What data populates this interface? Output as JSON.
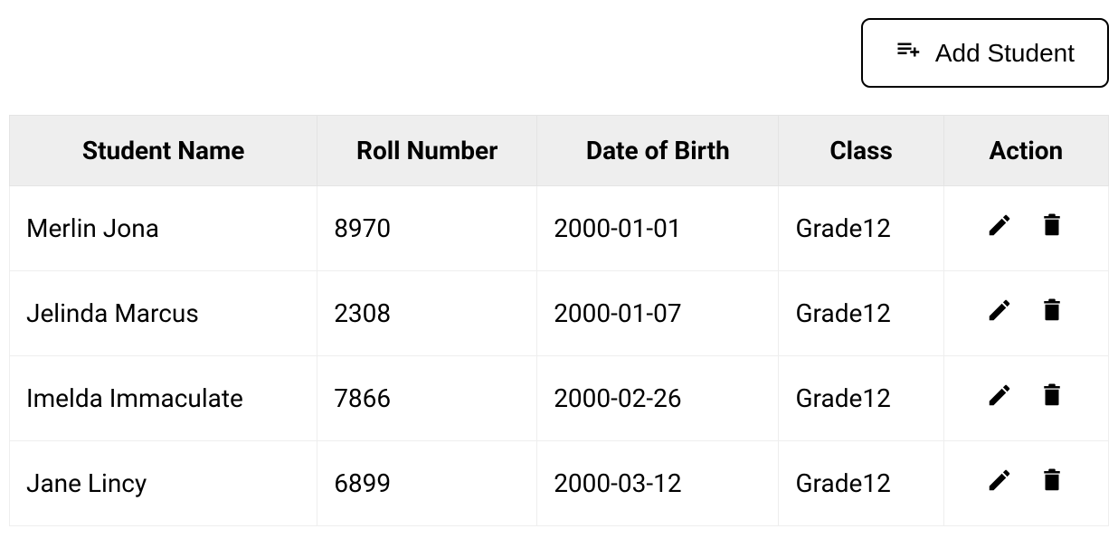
{
  "toolbar": {
    "add_label": "Add Student"
  },
  "table": {
    "columns": [
      "Student Name",
      "Roll Number",
      "Date of Birth",
      "Class",
      "Action"
    ],
    "column_widths": [
      "28%",
      "20%",
      "22%",
      "15%",
      "15%"
    ],
    "header_background": "#eeeeee",
    "border_color": "#eeeeee",
    "font_size": 28,
    "rows": [
      {
        "name": "Merlin Jona",
        "roll": "8970",
        "dob": "2000-01-01",
        "class": "Grade12"
      },
      {
        "name": "Jelinda Marcus",
        "roll": "2308",
        "dob": "2000-01-07",
        "class": "Grade12"
      },
      {
        "name": "Imelda Immaculate",
        "roll": "7866",
        "dob": "2000-02-26",
        "class": "Grade12"
      },
      {
        "name": "Jane Lincy",
        "roll": "6899",
        "dob": "2000-03-12",
        "class": "Grade12"
      }
    ]
  },
  "icons": {
    "playlist_add": "playlist-add-icon",
    "edit": "pencil-icon",
    "delete": "trash-icon"
  },
  "colors": {
    "text": "#000000",
    "background": "#ffffff",
    "button_border": "#000000",
    "header_bg": "#eeeeee",
    "cell_border": "#eeeeee"
  }
}
